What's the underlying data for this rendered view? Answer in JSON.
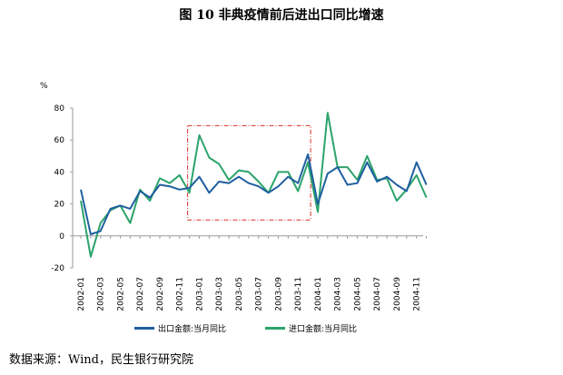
{
  "title": "图 10  非典疫情前后进出口同比增速",
  "source": "数据来源：Wind，民生银行研究院",
  "chart_data": {
    "type": "line",
    "ylabel": "%",
    "ylim": [
      -20,
      80
    ],
    "yticks": [
      -20,
      0,
      20,
      40,
      60,
      80
    ],
    "x": [
      "2002-01",
      "2002-02",
      "2002-03",
      "2002-04",
      "2002-05",
      "2002-06",
      "2002-07",
      "2002-08",
      "2002-09",
      "2002-10",
      "2002-11",
      "2002-12",
      "2003-01",
      "2003-02",
      "2003-03",
      "2003-04",
      "2003-05",
      "2003-06",
      "2003-07",
      "2003-08",
      "2003-09",
      "2003-10",
      "2003-11",
      "2003-12",
      "2004-01",
      "2004-02",
      "2004-03",
      "2004-04",
      "2004-05",
      "2004-06",
      "2004-07",
      "2004-08",
      "2004-09",
      "2004-10",
      "2004-11",
      "2004-12"
    ],
    "xtick_labels": [
      "2002-01",
      "2002-03",
      "2002-05",
      "2002-07",
      "2002-09",
      "2002-11",
      "2003-01",
      "2003-03",
      "2003-05",
      "2003-07",
      "2003-09",
      "2003-11",
      "2004-01",
      "2004-03",
      "2004-05",
      "2004-07",
      "2004-09",
      "2004-11"
    ],
    "series": [
      {
        "name": "出口金额:当月同比",
        "color": "#1f5fa0",
        "values": [
          29,
          1,
          3,
          17,
          19,
          17,
          28,
          24,
          32,
          31,
          29,
          30,
          37,
          27,
          34,
          33,
          37,
          33,
          31,
          27,
          31,
          37,
          33,
          51,
          20,
          39,
          43,
          32,
          33,
          46,
          34,
          37,
          32,
          28,
          46,
          32
        ]
      },
      {
        "name": "进口金额:当月同比",
        "color": "#2ca36b",
        "values": [
          22,
          -13,
          8,
          16,
          19,
          8,
          29,
          22,
          36,
          33,
          38,
          27,
          63,
          49,
          45,
          35,
          41,
          40,
          34,
          27,
          40,
          40,
          28,
          46,
          15,
          77,
          43,
          43,
          35,
          50,
          35,
          36,
          22,
          29,
          38,
          24
        ]
      }
    ],
    "highlight": {
      "from": "2002-12",
      "to": "2003-12",
      "ymin": 10,
      "ymax": 69,
      "color": "#d9302a"
    },
    "grid": false,
    "legend": "bottom"
  }
}
